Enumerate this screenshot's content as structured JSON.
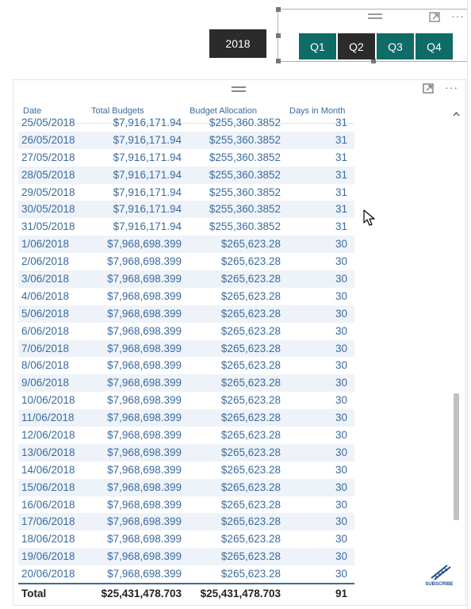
{
  "year_filter": {
    "label": "2018"
  },
  "quarters": [
    {
      "label": "Q1",
      "state": "active"
    },
    {
      "label": "Q2",
      "state": "selected"
    },
    {
      "label": "Q3",
      "state": "active"
    },
    {
      "label": "Q4",
      "state": "active"
    }
  ],
  "icons": {
    "drag_handle": "drag-handle-icon",
    "focus_mode": "focus-mode-icon",
    "more_options": "more-options-icon",
    "scroll_up": "chevron-up-icon",
    "cursor": "mouse-pointer-icon",
    "subscribe_logo": "dna-icon"
  },
  "colors": {
    "slicer_active": "#0e6b66",
    "slicer_selected": "#2b2b2b",
    "table_text": "#3a6b9e",
    "row_band": "#eef3f9"
  },
  "table": {
    "columns": [
      "Date",
      "Total Budgets",
      "Budget Allocation",
      "Days in Month"
    ],
    "partial_row": [
      "25/05/2018",
      "$7,916,171.94",
      "$255,360.3852",
      "31"
    ],
    "rows": [
      [
        "26/05/2018",
        "$7,916,171.94",
        "$255,360.3852",
        "31"
      ],
      [
        "27/05/2018",
        "$7,916,171.94",
        "$255,360.3852",
        "31"
      ],
      [
        "28/05/2018",
        "$7,916,171.94",
        "$255,360.3852",
        "31"
      ],
      [
        "29/05/2018",
        "$7,916,171.94",
        "$255,360.3852",
        "31"
      ],
      [
        "30/05/2018",
        "$7,916,171.94",
        "$255,360.3852",
        "31"
      ],
      [
        "31/05/2018",
        "$7,916,171.94",
        "$255,360.3852",
        "31"
      ],
      [
        "1/06/2018",
        "$7,968,698.399",
        "$265,623.28",
        "30"
      ],
      [
        "2/06/2018",
        "$7,968,698.399",
        "$265,623.28",
        "30"
      ],
      [
        "3/06/2018",
        "$7,968,698.399",
        "$265,623.28",
        "30"
      ],
      [
        "4/06/2018",
        "$7,968,698.399",
        "$265,623.28",
        "30"
      ],
      [
        "5/06/2018",
        "$7,968,698.399",
        "$265,623.28",
        "30"
      ],
      [
        "6/06/2018",
        "$7,968,698.399",
        "$265,623.28",
        "30"
      ],
      [
        "7/06/2018",
        "$7,968,698.399",
        "$265,623.28",
        "30"
      ],
      [
        "8/06/2018",
        "$7,968,698.399",
        "$265,623.28",
        "30"
      ],
      [
        "9/06/2018",
        "$7,968,698.399",
        "$265,623.28",
        "30"
      ],
      [
        "10/06/2018",
        "$7,968,698.399",
        "$265,623.28",
        "30"
      ],
      [
        "11/06/2018",
        "$7,968,698.399",
        "$265,623.28",
        "30"
      ],
      [
        "12/06/2018",
        "$7,968,698.399",
        "$265,623.28",
        "30"
      ],
      [
        "13/06/2018",
        "$7,968,698.399",
        "$265,623.28",
        "30"
      ],
      [
        "14/06/2018",
        "$7,968,698.399",
        "$265,623.28",
        "30"
      ],
      [
        "15/06/2018",
        "$7,968,698.399",
        "$265,623.28",
        "30"
      ],
      [
        "16/06/2018",
        "$7,968,698.399",
        "$265,623.28",
        "30"
      ],
      [
        "17/06/2018",
        "$7,968,698.399",
        "$265,623.28",
        "30"
      ],
      [
        "18/06/2018",
        "$7,968,698.399",
        "$265,623.28",
        "30"
      ],
      [
        "19/06/2018",
        "$7,968,698.399",
        "$265,623.28",
        "30"
      ],
      [
        "20/06/2018",
        "$7,968,698.399",
        "$265,623.28",
        "30"
      ]
    ],
    "total": [
      "Total",
      "$25,431,478.703",
      "$25,431,478.703",
      "91"
    ]
  },
  "watermark": {
    "text": "SUBSCRIBE"
  }
}
